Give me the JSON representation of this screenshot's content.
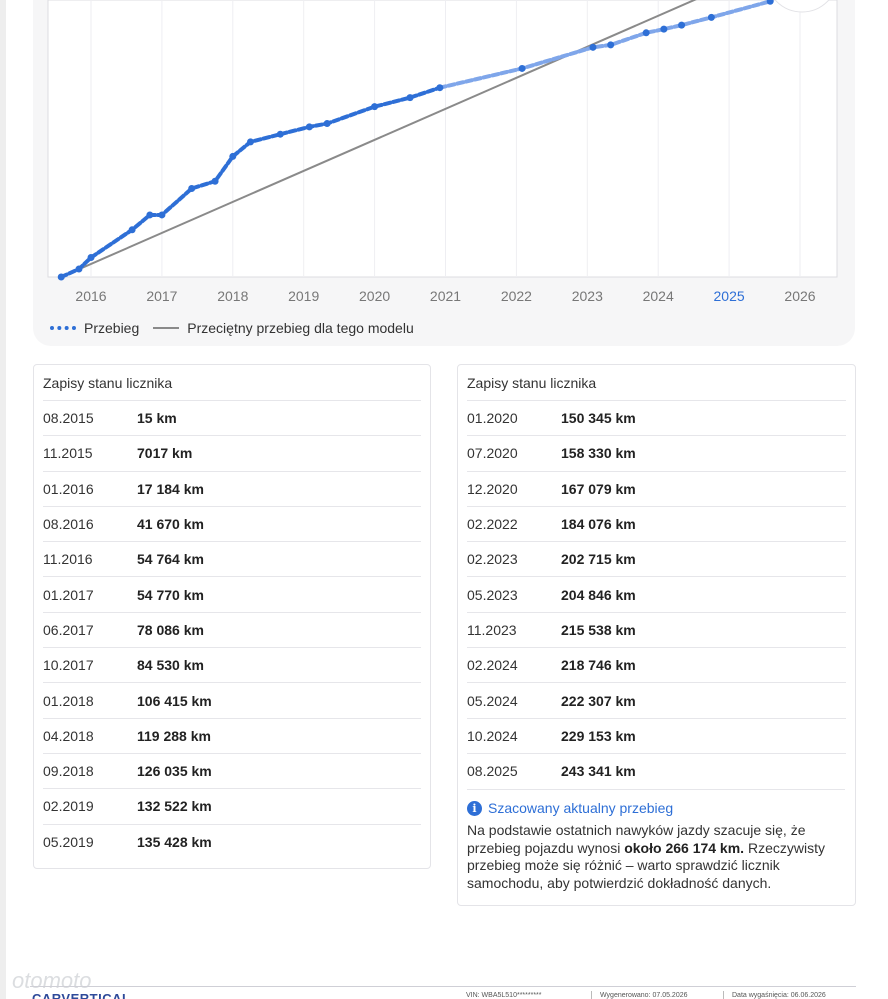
{
  "chart_data": {
    "type": "line",
    "x_ticks": [
      "2016",
      "2017",
      "2018",
      "2019",
      "2020",
      "2021",
      "2022",
      "2023",
      "2024",
      "2025",
      "2026"
    ],
    "highlighted_tick": "2025",
    "series": [
      {
        "name": "Przebieg",
        "color": "#2e6fd6",
        "style": "dotted",
        "points": [
          {
            "x": 2015.58,
            "y": 15
          },
          {
            "x": 2015.83,
            "y": 7017
          },
          {
            "x": 2016.0,
            "y": 17184
          },
          {
            "x": 2016.58,
            "y": 41670
          },
          {
            "x": 2016.83,
            "y": 54764
          },
          {
            "x": 2017.0,
            "y": 54770
          },
          {
            "x": 2017.42,
            "y": 78086
          },
          {
            "x": 2017.75,
            "y": 84530
          },
          {
            "x": 2018.0,
            "y": 106415
          },
          {
            "x": 2018.25,
            "y": 119288
          },
          {
            "x": 2018.67,
            "y": 126035
          },
          {
            "x": 2019.08,
            "y": 132522
          },
          {
            "x": 2019.33,
            "y": 135428
          },
          {
            "x": 2020.0,
            "y": 150345
          },
          {
            "x": 2020.5,
            "y": 158330
          },
          {
            "x": 2020.92,
            "y": 167079
          },
          {
            "x": 2022.08,
            "y": 184076
          },
          {
            "x": 2023.08,
            "y": 202715
          },
          {
            "x": 2023.33,
            "y": 204846
          },
          {
            "x": 2023.83,
            "y": 215538
          },
          {
            "x": 2024.08,
            "y": 218746
          },
          {
            "x": 2024.33,
            "y": 222307
          },
          {
            "x": 2024.75,
            "y": 229153
          },
          {
            "x": 2025.58,
            "y": 243341
          }
        ]
      },
      {
        "name": "Przeciętny przebieg dla tego modelu",
        "color": "#8a8a8a",
        "style": "solid",
        "points": [
          {
            "x": 2015.58,
            "y": 0
          },
          {
            "x": 2026.5,
            "y": 299000
          }
        ]
      }
    ],
    "legend_position": "bottom-left",
    "grid": "vertical"
  },
  "tables": [
    {
      "title": "Zapisy stanu licznika",
      "rows": [
        {
          "date": "08.2015",
          "km": "15 km"
        },
        {
          "date": "11.2015",
          "km": "7017 km"
        },
        {
          "date": "01.2016",
          "km": "17 184 km"
        },
        {
          "date": "08.2016",
          "km": "41 670 km"
        },
        {
          "date": "11.2016",
          "km": "54 764 km"
        },
        {
          "date": "01.2017",
          "km": "54 770 km"
        },
        {
          "date": "06.2017",
          "km": "78 086 km"
        },
        {
          "date": "10.2017",
          "km": "84 530 km"
        },
        {
          "date": "01.2018",
          "km": "106 415 km"
        },
        {
          "date": "04.2018",
          "km": "119 288 km"
        },
        {
          "date": "09.2018",
          "km": "126 035 km"
        },
        {
          "date": "02.2019",
          "km": "132 522 km"
        },
        {
          "date": "05.2019",
          "km": "135 428 km"
        }
      ]
    },
    {
      "title": "Zapisy stanu licznika",
      "rows": [
        {
          "date": "01.2020",
          "km": "150 345 km"
        },
        {
          "date": "07.2020",
          "km": "158 330 km"
        },
        {
          "date": "12.2020",
          "km": "167 079 km"
        },
        {
          "date": "02.2022",
          "km": "184 076 km"
        },
        {
          "date": "02.2023",
          "km": "202 715 km"
        },
        {
          "date": "05.2023",
          "km": "204 846 km"
        },
        {
          "date": "11.2023",
          "km": "215 538 km"
        },
        {
          "date": "02.2024",
          "km": "218 746 km"
        },
        {
          "date": "05.2024",
          "km": "222 307 km"
        },
        {
          "date": "10.2024",
          "km": "229 153 km"
        },
        {
          "date": "08.2025",
          "km": "243 341 km"
        }
      ]
    }
  ],
  "estimate": {
    "icon": "info-icon",
    "title": "Szacowany aktualny przebieg",
    "text_before": "Na podstawie ostatnich nawyków jazdy szacuje się, że przebieg pojazdu wynosi ",
    "text_bold": "około 266 174 km.",
    "text_after": " Rzeczywisty przebieg może się różnić – warto sprawdzić licznik samochodu, aby potwierdzić dokładność danych."
  },
  "footer": {
    "logo": "CARVERTICAL",
    "vin": "VIN: WBA5L510*********",
    "generated": "Wygenerowano: 07.05.2026",
    "expires": "Data wygaśnięcia: 06.06.2026"
  },
  "watermark": "otomoto"
}
